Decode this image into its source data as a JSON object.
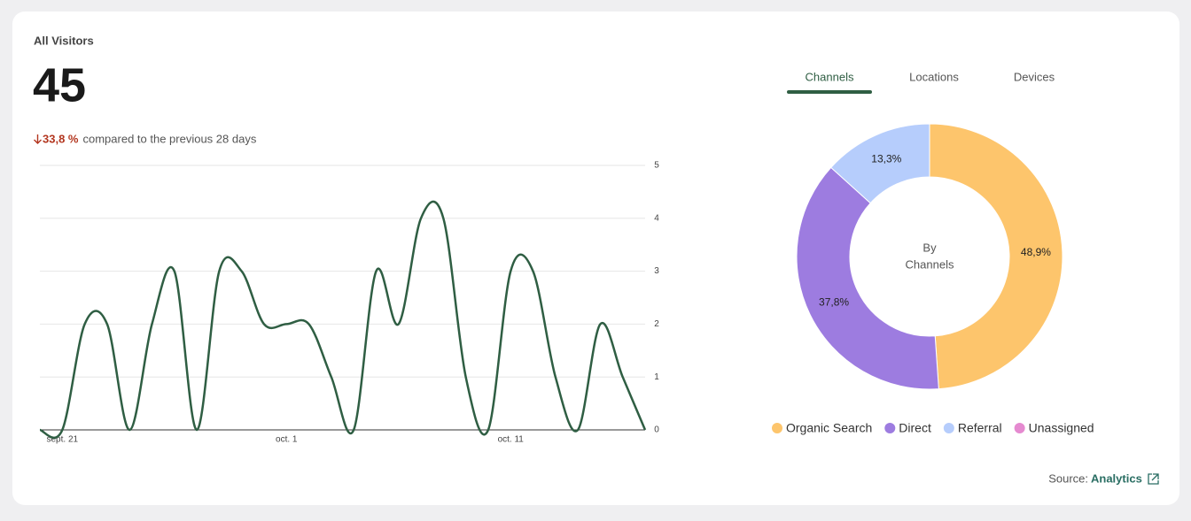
{
  "header": {
    "title": "All Visitors",
    "total": "45",
    "change": "33,8 %",
    "comparison": "compared to the previous 28 days"
  },
  "tabs": [
    "Channels",
    "Locations",
    "Devices"
  ],
  "chart_data": [
    {
      "type": "line",
      "categories": [
        null,
        "sept. 21",
        null,
        null,
        null,
        null,
        null,
        null,
        null,
        null,
        null,
        "oct. 1",
        null,
        null,
        null,
        null,
        null,
        null,
        null,
        null,
        null,
        "oct. 11",
        null,
        null,
        null,
        null,
        null,
        null
      ],
      "values": [
        0,
        0,
        2,
        2,
        0,
        2,
        3,
        0,
        3,
        3,
        2,
        2,
        2,
        1,
        0,
        3,
        2,
        4,
        4,
        1,
        0,
        3,
        3,
        1,
        0,
        2,
        1,
        0
      ],
      "color": "#2f5e43",
      "ylim": [
        0,
        5
      ],
      "yticks": [
        0,
        1,
        2,
        3,
        4,
        5
      ],
      "grid": true
    },
    {
      "type": "donut",
      "center_label": [
        "By",
        "Channels"
      ],
      "categories": [
        "Organic Search",
        "Direct",
        "Referral",
        "Unassigned"
      ],
      "values": [
        48.9,
        37.8,
        13.3,
        0
      ],
      "value_labels": [
        "48,9%",
        "37,8%",
        "13,3%",
        null
      ],
      "colors": [
        "#fdc56c",
        "#9d7ce0",
        "#b6cdfc",
        "#e58ad0"
      ]
    }
  ],
  "source": {
    "label": "Source:",
    "link": "Analytics"
  }
}
